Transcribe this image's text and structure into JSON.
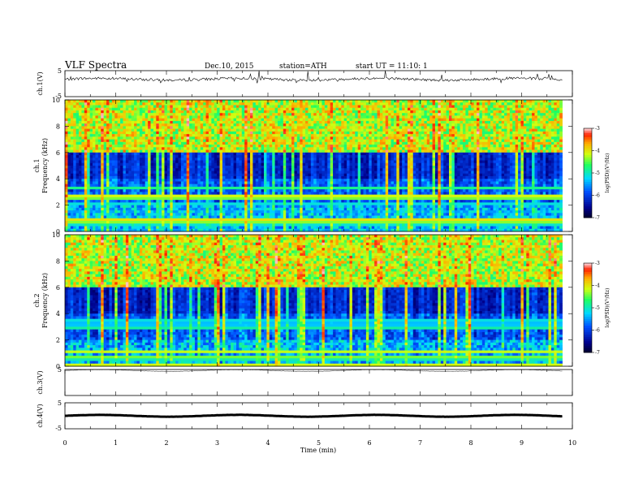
{
  "header": {
    "title": "VLF  Spectra",
    "date": "Dec.10, 2015",
    "station": "station=ATH",
    "start": "start  UT  =   11:10: 1"
  },
  "chart_data": [
    {
      "type": "line",
      "name": "ch1-waveform",
      "ylabel": "ch.1(V)",
      "ylim": [
        -5,
        5
      ],
      "y_ticks": [
        "5",
        "-5"
      ],
      "xlim": [
        0,
        10
      ],
      "baseline_v": 1.7,
      "data_end_min": 9.8
    },
    {
      "type": "heatmap",
      "name": "ch1-spectrogram",
      "ylabel_top": "ch.1",
      "ylabel": "Frequency  (kHz)",
      "ylim": [
        0,
        10
      ],
      "y_ticks": [
        "0",
        "2",
        "4",
        "6",
        "8",
        "10"
      ],
      "xlim": [
        0,
        10
      ],
      "data_end_min": 9.8,
      "colorbar": {
        "label": "log(PSD)(V²/Hz)",
        "range": [
          -7,
          -3
        ],
        "ticks": [
          "-3",
          "-4",
          "-5",
          "-6",
          "-7"
        ]
      }
    },
    {
      "type": "heatmap",
      "name": "ch2-spectrogram",
      "ylabel_top": "ch.2",
      "ylabel": "Frequency  (kHz)",
      "ylim": [
        0,
        10
      ],
      "y_ticks": [
        "0",
        "2",
        "4",
        "6",
        "8",
        "10"
      ],
      "xlim": [
        0,
        10
      ],
      "data_end_min": 9.8,
      "colorbar": {
        "label": "log(PSD)(V²/Hz)",
        "range": [
          -7,
          -3
        ],
        "ticks": [
          "-3",
          "-4",
          "-5",
          "-6",
          "-7"
        ]
      }
    },
    {
      "type": "line",
      "name": "ch3-waveform",
      "ylabel": "ch.3(V)",
      "ylim": [
        -5,
        5
      ],
      "y_ticks": [
        "5"
      ],
      "xlim": [
        0,
        10
      ],
      "baseline_v": 4.6,
      "data_end_min": 9.8
    },
    {
      "type": "line",
      "name": "ch4-waveform",
      "ylabel": "ch.4(V)",
      "ylim": [
        -5,
        5
      ],
      "y_ticks": [
        "5",
        "-5"
      ],
      "xlim": [
        0,
        10
      ],
      "baseline_v": 0.0,
      "data_end_min": 9.8
    }
  ],
  "x_axis": {
    "label": "Time  (min)",
    "ticks": [
      "0",
      "1",
      "2",
      "3",
      "4",
      "5",
      "6",
      "7",
      "8",
      "9",
      "10"
    ]
  }
}
